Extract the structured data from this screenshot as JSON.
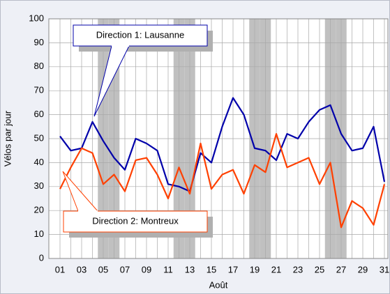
{
  "chart_data": {
    "type": "line",
    "categories": [
      "01",
      null,
      "03",
      null,
      "05",
      null,
      "07",
      null,
      "09",
      null,
      "11",
      null,
      "13",
      null,
      "15",
      null,
      "17",
      null,
      "19",
      null,
      "21",
      null,
      "23",
      null,
      "25",
      null,
      "27",
      null,
      "29",
      null,
      "31"
    ],
    "series": [
      {
        "name": "Direction 1: Lausanne",
        "color": "#0000aa",
        "values": [
          51,
          45,
          46,
          57,
          49,
          42,
          37,
          50,
          48,
          45,
          31,
          30,
          28,
          44,
          40,
          55,
          67,
          60,
          46,
          45,
          41,
          52,
          50,
          57,
          62,
          64,
          52,
          45,
          46,
          55,
          32
        ]
      },
      {
        "name": "Direction 2: Montreux",
        "color": "#ff4000",
        "values": [
          29,
          38,
          46,
          44,
          31,
          35,
          28,
          41,
          42,
          35,
          25,
          38,
          27,
          48,
          29,
          35,
          37,
          27,
          39,
          36,
          52,
          38,
          40,
          42,
          31,
          40,
          13,
          24,
          21,
          14,
          31
        ]
      }
    ],
    "shaded_days": [
      5,
      6,
      12,
      13,
      19,
      20,
      26,
      27
    ],
    "shade_color": "#c0c0c0",
    "ylabel": "Vélos par jour",
    "xlabel": "Août",
    "ylim": [
      0,
      100
    ],
    "yticks": [
      0,
      10,
      20,
      30,
      40,
      50,
      60,
      70,
      80,
      90,
      100
    ],
    "grid": true
  }
}
